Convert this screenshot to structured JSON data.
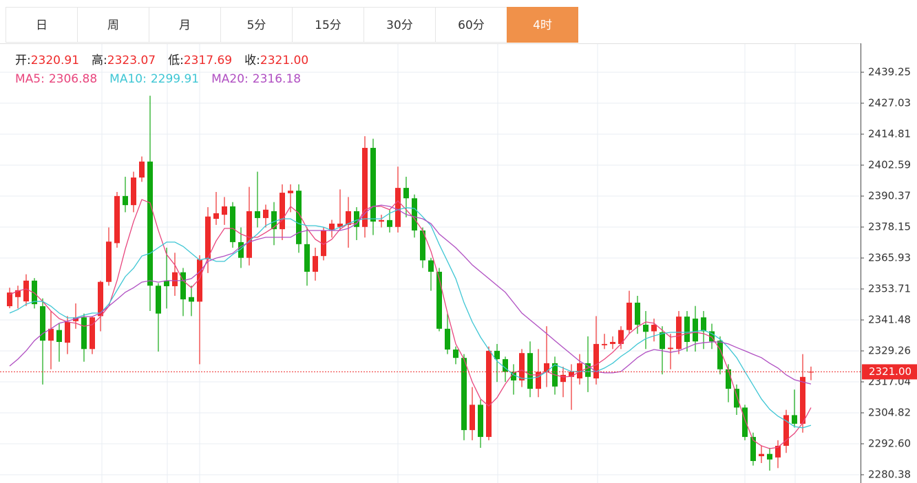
{
  "tabs": {
    "items": [
      "日",
      "周",
      "月",
      "5分",
      "15分",
      "30分",
      "60分",
      "4时"
    ],
    "active": 7
  },
  "chart_data": {
    "type": "candlestick",
    "header": [
      {
        "label": "开:",
        "value": "2320.91"
      },
      {
        "label": "高:",
        "value": "2323.07"
      },
      {
        "label": "低:",
        "value": "2317.69"
      },
      {
        "label": "收:",
        "value": "2321.00"
      }
    ],
    "legend": [
      {
        "label": "MA5:",
        "value": "2306.88"
      },
      {
        "label": "MA10:",
        "value": "2299.91"
      },
      {
        "label": "MA20:",
        "value": "2316.18"
      }
    ],
    "up_color": "#ee2b2b",
    "down_color": "#10a810",
    "open": [
      2346.9,
      2350.5,
      2348.8,
      2357,
      2346.9,
      2333.3,
      2337.5,
      2332.5,
      2341,
      2342.5,
      2330,
      2343,
      2356.5,
      2371.8,
      2390.4,
      2386.8,
      2397.7,
      2404,
      2355,
      2357,
      2354.8,
      2360.3,
      2350.5,
      2348.7,
      2365.4,
      2381.4,
      2383,
      2386.3,
      2372.2,
      2366,
      2384.4,
      2381.7,
      2384.4,
      2377.3,
      2391.5,
      2392.5,
      2371.4,
      2360.5,
      2366.7,
      2376.8,
      2378.2,
      2379,
      2384.4,
      2378.2,
      2409.4,
      2380.3,
      2380.9,
      2378.2,
      2393.6,
      2389.5,
      2376.8,
      2365,
      2360.5,
      2338,
      2329.8,
      2326.5,
      2298,
      2308,
      2295.3,
      2329.3,
      2326,
      2321,
      2317.6,
      2328.4,
      2314.3,
      2321,
      2324.4,
      2317,
      2319,
      2318.4,
      2324.4,
      2318.4,
      2331.5,
      2332,
      2332,
      2337.5,
      2348.3,
      2339.6,
      2337,
      2336.6,
      2330,
      2330,
      2342.8,
      2342,
      2342.5,
      2337,
      2333.3,
      2322,
      2314.3,
      2306.9,
      2295.3,
      2287.7,
      2288.6,
      2287.2,
      2291.8,
      2303.9,
      2300.5,
      2320.91
    ],
    "close": [
      2352.3,
      2353.2,
      2357,
      2347.7,
      2333.3,
      2338,
      2332.8,
      2340.7,
      2342.5,
      2330,
      2342.5,
      2356.5,
      2372.4,
      2390.4,
      2386.8,
      2397.7,
      2404,
      2355,
      2344,
      2354.8,
      2360.3,
      2349.6,
      2348.7,
      2365.4,
      2382.3,
      2383.6,
      2386.3,
      2372.2,
      2366,
      2384.4,
      2381.7,
      2385,
      2377.3,
      2391.7,
      2392.5,
      2371.4,
      2360.5,
      2366.7,
      2376.8,
      2379.5,
      2379.5,
      2384.4,
      2378.2,
      2409.4,
      2380.3,
      2380.9,
      2378.2,
      2393.6,
      2389.5,
      2376.8,
      2365,
      2360.5,
      2338,
      2329.8,
      2326.5,
      2298,
      2308,
      2295.3,
      2329.3,
      2326,
      2321,
      2317.6,
      2328.4,
      2314.3,
      2321,
      2324.4,
      2315.2,
      2319.8,
      2321,
      2324.4,
      2319,
      2332,
      2332,
      2332.8,
      2337.5,
      2348.3,
      2339.6,
      2336.8,
      2339.6,
      2330,
      2330.5,
      2342.8,
      2332.8,
      2333,
      2337,
      2333,
      2322,
      2314.3,
      2306.9,
      2295.3,
      2285.8,
      2288.6,
      2286.4,
      2291.8,
      2303.9,
      2300.5,
      2319,
      2321
    ],
    "high": [
      2354.2,
      2355,
      2359.5,
      2358,
      2350,
      2345,
      2340,
      2343,
      2348,
      2344,
      2343,
      2357,
      2378,
      2392,
      2398,
      2400,
      2406,
      2430,
      2356,
      2370,
      2368,
      2362,
      2355,
      2367,
      2386,
      2392,
      2390,
      2388,
      2378,
      2394,
      2400,
      2387,
      2388,
      2395,
      2395,
      2395,
      2378,
      2370,
      2378,
      2381,
      2393,
      2390,
      2386,
      2414,
      2413,
      2383,
      2385,
      2402,
      2398,
      2391,
      2378,
      2366,
      2362,
      2344,
      2331,
      2328,
      2315,
      2310,
      2331,
      2332,
      2327,
      2324,
      2330,
      2333,
      2330,
      2339,
      2327,
      2323,
      2324,
      2328,
      2335,
      2343,
      2336,
      2335,
      2339,
      2353,
      2351,
      2345,
      2342,
      2339,
      2336,
      2345,
      2345,
      2347,
      2345,
      2340,
      2335,
      2324,
      2316,
      2308,
      2297,
      2292,
      2291,
      2294,
      2306,
      2314,
      2328,
      2323.07
    ],
    "low": [
      2346.1,
      2346,
      2347,
      2346,
      2316,
      2322,
      2325,
      2328,
      2338,
      2325,
      2328,
      2337,
      2355,
      2370,
      2384,
      2384,
      2396,
      2345,
      2329,
      2346,
      2351,
      2343,
      2343,
      2324,
      2360,
      2379,
      2379,
      2370,
      2362,
      2363,
      2378,
      2378,
      2371,
      2373,
      2384,
      2368,
      2355,
      2357,
      2365,
      2374,
      2377,
      2370,
      2373,
      2374,
      2375,
      2378,
      2376,
      2376,
      2382,
      2374,
      2362,
      2353,
      2337,
      2328,
      2324,
      2294,
      2294,
      2291,
      2294,
      2317,
      2317,
      2312,
      2315,
      2311,
      2311,
      2315,
      2312,
      2311,
      2306,
      2316,
      2313,
      2316,
      2330,
      2330,
      2330,
      2336,
      2336,
      2330,
      2333,
      2320,
      2322,
      2328,
      2329,
      2329,
      2330,
      2330,
      2320,
      2309,
      2304,
      2294,
      2284,
      2285,
      2282,
      2283,
      2289,
      2299,
      2297,
      2317.69
    ],
    "series": [
      {
        "color": "#e8457d",
        "values": [
          2351.5,
          2352.9,
          2353.7,
          2352.1,
          2348.8,
          2345,
          2342,
          2340.7,
          2340.2,
          2339,
          2339.6,
          2342.8,
          2346.9,
          2357,
          2369.5,
          2380.3,
          2389,
          2387.7,
          2376.8,
          2367.3,
          2363.2,
          2357,
          2354.2,
          2357.8,
          2365.9,
          2372.7,
          2377.6,
          2377.6,
          2375.4,
          2374.1,
          2374.1,
          2376,
          2378.1,
          2380.9,
          2386.3,
          2383.6,
          2377.6,
          2373.3,
          2371.3,
          2373.3,
          2377.3,
          2379.5,
          2379.5,
          2385,
          2386.3,
          2386.3,
          2385,
          2388.5,
          2385,
          2381.4,
          2376.8,
          2368.6,
          2357.8,
          2344.2,
          2332,
          2326,
          2317,
          2310.3,
          2307.5,
          2310.8,
          2316.2,
          2320.6,
          2321.7,
          2319.8,
          2319.8,
          2321.1,
          2319.8,
          2319,
          2319.2,
          2321.1,
          2322.5,
          2323.8,
          2326,
          2328.7,
          2332,
          2336.1,
          2338.8,
          2340.7,
          2340.2,
          2337.4,
          2334.7,
          2335.2,
          2336.1,
          2336.6,
          2336.1,
          2334.7,
          2329.8,
          2321.7,
          2311.6,
          2302.1,
          2294,
          2291.8,
          2290.7,
          2291.2,
          2294,
          2296.7,
          2300.8,
          2306.88
        ]
      },
      {
        "color": "#3ec6d4",
        "values": [
          2344.2,
          2345.6,
          2347.7,
          2348.8,
          2348.8,
          2346.9,
          2344.2,
          2342.3,
          2342.3,
          2343.4,
          2344.2,
          2344.2,
          2347.7,
          2353.2,
          2358.6,
          2361.9,
          2366.7,
          2367.8,
          2370,
          2372.2,
          2372.2,
          2370.5,
          2367.8,
          2365.1,
          2365.9,
          2364.6,
          2364.6,
          2367.3,
          2369.5,
          2372.7,
          2375.4,
          2378.7,
          2380.3,
          2381.4,
          2381.4,
          2379.5,
          2378.7,
          2378.7,
          2378.1,
          2376.8,
          2378.1,
          2379.5,
          2380.9,
          2381.4,
          2381.4,
          2381.4,
          2383.6,
          2385,
          2385.8,
          2385.5,
          2382.2,
          2378.7,
          2371.3,
          2364.6,
          2357.8,
          2348.3,
          2340.7,
          2334.7,
          2329.8,
          2325.2,
          2322.5,
          2319.8,
          2318.4,
          2318.4,
          2319,
          2321.1,
          2323.8,
          2322.5,
          2321.1,
          2321.1,
          2321.1,
          2321.1,
          2322.5,
          2324.4,
          2327.1,
          2329.3,
          2332,
          2334.1,
          2335.2,
          2336.1,
          2336.6,
          2336.6,
          2336.6,
          2336.9,
          2337.4,
          2336.1,
          2333.9,
          2330.6,
          2326.6,
          2321.1,
          2315.7,
          2310.3,
          2306.2,
          2303.5,
          2301.6,
          2299.4,
          2298.9,
          2299.91
        ]
      },
      {
        "color": "#b04fc2",
        "values": [
          2323.3,
          2326,
          2329.3,
          2333.3,
          2336.1,
          2338,
          2340.2,
          2341,
          2342,
          2342.8,
          2342.8,
          2344.2,
          2346.9,
          2349.6,
          2352.4,
          2354.2,
          2356.4,
          2357,
          2356.4,
          2357,
          2357,
          2357,
          2357.8,
          2360.5,
          2364.6,
          2365.9,
          2366.7,
          2367.8,
          2370.5,
          2372.2,
          2373.3,
          2374.1,
          2374.1,
          2374.1,
          2374.1,
          2376,
          2376.8,
          2376.8,
          2376.8,
          2376.8,
          2376.8,
          2377.6,
          2379.5,
          2383.6,
          2386.3,
          2386.8,
          2386.3,
          2385,
          2383.1,
          2382.2,
          2381.4,
          2379.5,
          2375.4,
          2372.7,
          2370,
          2366.7,
          2363.2,
          2360.5,
          2357.8,
          2355.1,
          2352.4,
          2348.3,
          2344.2,
          2341.5,
          2338.8,
          2336.1,
          2333.3,
          2330.6,
          2327.9,
          2325.2,
          2323.3,
          2321.1,
          2320.6,
          2320.6,
          2321.1,
          2323.8,
          2326.6,
          2328.7,
          2329.8,
          2329.3,
          2328.7,
          2329.3,
          2330.6,
          2332,
          2332.5,
          2332.8,
          2332.8,
          2332,
          2330.6,
          2329.3,
          2327.9,
          2326.6,
          2324.4,
          2322.5,
          2319.8,
          2317.9,
          2317,
          2316.18
        ]
      }
    ],
    "price_line": {
      "value": 2321,
      "label": "2321.00",
      "color": "#ee2b2b"
    },
    "ylim": [
      2277.12,
      2450.66
    ],
    "yticks": [
      2439.25,
      2427.03,
      2414.81,
      2402.59,
      2390.37,
      2378.15,
      2365.93,
      2353.71,
      2341.48,
      2329.26,
      2317.04,
      2304.82,
      {
        "value": 2292.6,
        "label": "2292.60"
      },
      2280.38
    ],
    "grid": true
  }
}
